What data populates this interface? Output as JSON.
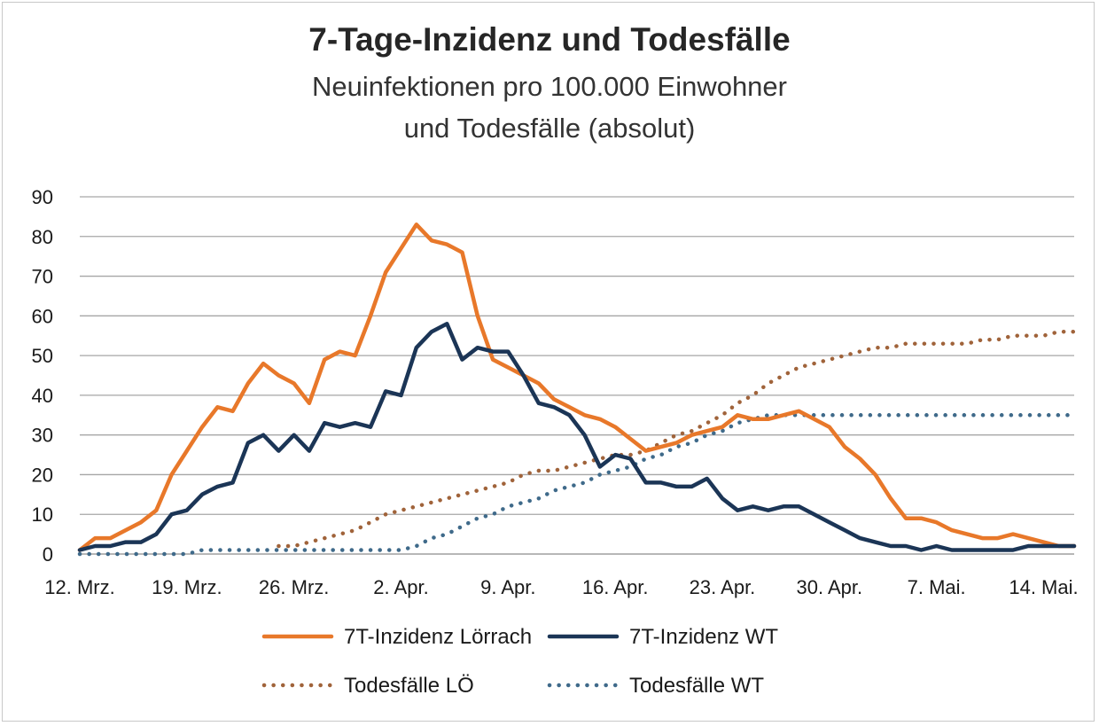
{
  "chart_data": {
    "type": "line",
    "title": "7-Tage-Inzidenz und Todesfälle",
    "subtitle_line1": "Neuinfektionen pro 100.000 Einwohner",
    "subtitle_line2": "und Todesfälle (absolut)",
    "x_tick_labels": [
      "12. Mrz.",
      "19. Mrz.",
      "26. Mrz.",
      "2. Apr.",
      "9. Apr.",
      "16. Apr.",
      "23. Apr.",
      "30. Apr.",
      "7. Mai.",
      "14. Mai."
    ],
    "x_tick_day_index": [
      0,
      7,
      14,
      21,
      28,
      35,
      42,
      49,
      56,
      63
    ],
    "xlim": [
      0,
      65
    ],
    "ylim": [
      0,
      90
    ],
    "y_ticks": [
      0,
      10,
      20,
      30,
      40,
      50,
      60,
      70,
      80,
      90
    ],
    "grid": true,
    "legend_position": "bottom",
    "series": [
      {
        "name": "7T-Inzidenz Lörrach",
        "color": "#e8782a",
        "style": "solid",
        "points": [
          [
            0,
            1
          ],
          [
            1,
            4
          ],
          [
            2,
            4
          ],
          [
            3,
            6
          ],
          [
            4,
            8
          ],
          [
            5,
            11
          ],
          [
            6,
            20
          ],
          [
            7,
            26
          ],
          [
            8,
            32
          ],
          [
            9,
            37
          ],
          [
            10,
            36
          ],
          [
            11,
            43
          ],
          [
            12,
            48
          ],
          [
            13,
            45
          ],
          [
            14,
            43
          ],
          [
            15,
            38
          ],
          [
            16,
            49
          ],
          [
            17,
            51
          ],
          [
            18,
            50
          ],
          [
            19,
            60
          ],
          [
            20,
            71
          ],
          [
            21,
            77
          ],
          [
            22,
            83
          ],
          [
            23,
            79
          ],
          [
            24,
            78
          ],
          [
            25,
            76
          ],
          [
            26,
            60
          ],
          [
            27,
            49
          ],
          [
            28,
            47
          ],
          [
            29,
            45
          ],
          [
            30,
            43
          ],
          [
            31,
            39
          ],
          [
            32,
            37
          ],
          [
            33,
            35
          ],
          [
            34,
            34
          ],
          [
            35,
            32
          ],
          [
            36,
            29
          ],
          [
            37,
            26
          ],
          [
            38,
            27
          ],
          [
            39,
            28
          ],
          [
            40,
            30
          ],
          [
            41,
            31
          ],
          [
            42,
            32
          ],
          [
            43,
            35
          ],
          [
            44,
            34
          ],
          [
            45,
            34
          ],
          [
            46,
            35
          ],
          [
            47,
            36
          ],
          [
            48,
            34
          ],
          [
            49,
            32
          ],
          [
            50,
            27
          ],
          [
            51,
            24
          ],
          [
            52,
            20
          ],
          [
            53,
            14
          ],
          [
            54,
            9
          ],
          [
            55,
            9
          ],
          [
            56,
            8
          ],
          [
            57,
            6
          ],
          [
            58,
            5
          ],
          [
            59,
            4
          ],
          [
            60,
            4
          ],
          [
            61,
            5
          ],
          [
            62,
            4
          ],
          [
            63,
            3
          ],
          [
            64,
            2
          ],
          [
            65,
            2
          ]
        ]
      },
      {
        "name": "7T-Inzidenz WT",
        "color": "#1b3556",
        "style": "solid",
        "points": [
          [
            0,
            1
          ],
          [
            1,
            2
          ],
          [
            2,
            2
          ],
          [
            3,
            3
          ],
          [
            4,
            3
          ],
          [
            5,
            5
          ],
          [
            6,
            10
          ],
          [
            7,
            11
          ],
          [
            8,
            15
          ],
          [
            9,
            17
          ],
          [
            10,
            18
          ],
          [
            11,
            28
          ],
          [
            12,
            30
          ],
          [
            13,
            26
          ],
          [
            14,
            30
          ],
          [
            15,
            26
          ],
          [
            16,
            33
          ],
          [
            17,
            32
          ],
          [
            18,
            33
          ],
          [
            19,
            32
          ],
          [
            20,
            41
          ],
          [
            21,
            40
          ],
          [
            22,
            52
          ],
          [
            23,
            56
          ],
          [
            24,
            58
          ],
          [
            25,
            49
          ],
          [
            26,
            52
          ],
          [
            27,
            51
          ],
          [
            28,
            51
          ],
          [
            29,
            45
          ],
          [
            30,
            38
          ],
          [
            31,
            37
          ],
          [
            32,
            35
          ],
          [
            33,
            30
          ],
          [
            34,
            22
          ],
          [
            35,
            25
          ],
          [
            36,
            24
          ],
          [
            37,
            18
          ],
          [
            38,
            18
          ],
          [
            39,
            17
          ],
          [
            40,
            17
          ],
          [
            41,
            19
          ],
          [
            42,
            14
          ],
          [
            43,
            11
          ],
          [
            44,
            12
          ],
          [
            45,
            11
          ],
          [
            46,
            12
          ],
          [
            47,
            12
          ],
          [
            48,
            10
          ],
          [
            49,
            8
          ],
          [
            50,
            6
          ],
          [
            51,
            4
          ],
          [
            52,
            3
          ],
          [
            53,
            2
          ],
          [
            54,
            2
          ],
          [
            55,
            1
          ],
          [
            56,
            2
          ],
          [
            57,
            1
          ],
          [
            58,
            1
          ],
          [
            59,
            1
          ],
          [
            60,
            1
          ],
          [
            61,
            1
          ],
          [
            62,
            2
          ],
          [
            63,
            2
          ],
          [
            64,
            2
          ],
          [
            65,
            2
          ]
        ]
      },
      {
        "name": "Todesfälle LÖ",
        "color": "#a0633a",
        "style": "dotted",
        "points": [
          [
            13,
            2
          ],
          [
            14,
            2
          ],
          [
            15,
            3
          ],
          [
            16,
            4
          ],
          [
            17,
            5
          ],
          [
            18,
            6
          ],
          [
            19,
            8
          ],
          [
            20,
            10
          ],
          [
            21,
            11
          ],
          [
            22,
            12
          ],
          [
            23,
            13
          ],
          [
            24,
            14
          ],
          [
            25,
            15
          ],
          [
            26,
            16
          ],
          [
            27,
            17
          ],
          [
            28,
            18
          ],
          [
            29,
            20
          ],
          [
            30,
            21
          ],
          [
            31,
            21
          ],
          [
            32,
            22
          ],
          [
            33,
            23
          ],
          [
            34,
            24
          ],
          [
            35,
            25
          ],
          [
            36,
            25
          ],
          [
            37,
            26
          ],
          [
            38,
            28
          ],
          [
            39,
            30
          ],
          [
            40,
            31
          ],
          [
            41,
            33
          ],
          [
            42,
            35
          ],
          [
            43,
            38
          ],
          [
            44,
            40
          ],
          [
            45,
            43
          ],
          [
            46,
            45
          ],
          [
            47,
            47
          ],
          [
            48,
            48
          ],
          [
            49,
            49
          ],
          [
            50,
            50
          ],
          [
            51,
            51
          ],
          [
            52,
            52
          ],
          [
            53,
            52
          ],
          [
            54,
            53
          ],
          [
            55,
            53
          ],
          [
            56,
            53
          ],
          [
            57,
            53
          ],
          [
            58,
            53
          ],
          [
            59,
            54
          ],
          [
            60,
            54
          ],
          [
            61,
            55
          ],
          [
            62,
            55
          ],
          [
            63,
            55
          ],
          [
            64,
            56
          ],
          [
            65,
            56
          ]
        ]
      },
      {
        "name": "Todesfälle WT",
        "color": "#3f6a8a",
        "style": "dotted",
        "points": [
          [
            0,
            0
          ],
          [
            1,
            0
          ],
          [
            2,
            0
          ],
          [
            3,
            0
          ],
          [
            4,
            0
          ],
          [
            5,
            0
          ],
          [
            6,
            0
          ],
          [
            7,
            0
          ],
          [
            8,
            1
          ],
          [
            9,
            1
          ],
          [
            10,
            1
          ],
          [
            11,
            1
          ],
          [
            12,
            1
          ],
          [
            13,
            1
          ],
          [
            14,
            1
          ],
          [
            15,
            1
          ],
          [
            16,
            1
          ],
          [
            17,
            1
          ],
          [
            18,
            1
          ],
          [
            19,
            1
          ],
          [
            20,
            1
          ],
          [
            21,
            1
          ],
          [
            22,
            2
          ],
          [
            23,
            4
          ],
          [
            24,
            5
          ],
          [
            25,
            7
          ],
          [
            26,
            9
          ],
          [
            27,
            10
          ],
          [
            28,
            12
          ],
          [
            29,
            13
          ],
          [
            30,
            14
          ],
          [
            31,
            16
          ],
          [
            32,
            17
          ],
          [
            33,
            18
          ],
          [
            34,
            20
          ],
          [
            35,
            21
          ],
          [
            36,
            22
          ],
          [
            37,
            24
          ],
          [
            38,
            25
          ],
          [
            39,
            27
          ],
          [
            40,
            28
          ],
          [
            41,
            30
          ],
          [
            42,
            31
          ],
          [
            43,
            33
          ],
          [
            44,
            34
          ],
          [
            45,
            35
          ],
          [
            46,
            35
          ],
          [
            47,
            35
          ],
          [
            48,
            35
          ],
          [
            49,
            35
          ],
          [
            50,
            35
          ],
          [
            51,
            35
          ],
          [
            52,
            35
          ],
          [
            53,
            35
          ],
          [
            54,
            35
          ],
          [
            55,
            35
          ],
          [
            56,
            35
          ],
          [
            57,
            35
          ],
          [
            58,
            35
          ],
          [
            59,
            35
          ],
          [
            60,
            35
          ],
          [
            61,
            35
          ],
          [
            62,
            35
          ],
          [
            63,
            35
          ],
          [
            64,
            35
          ],
          [
            65,
            35
          ]
        ]
      }
    ]
  }
}
